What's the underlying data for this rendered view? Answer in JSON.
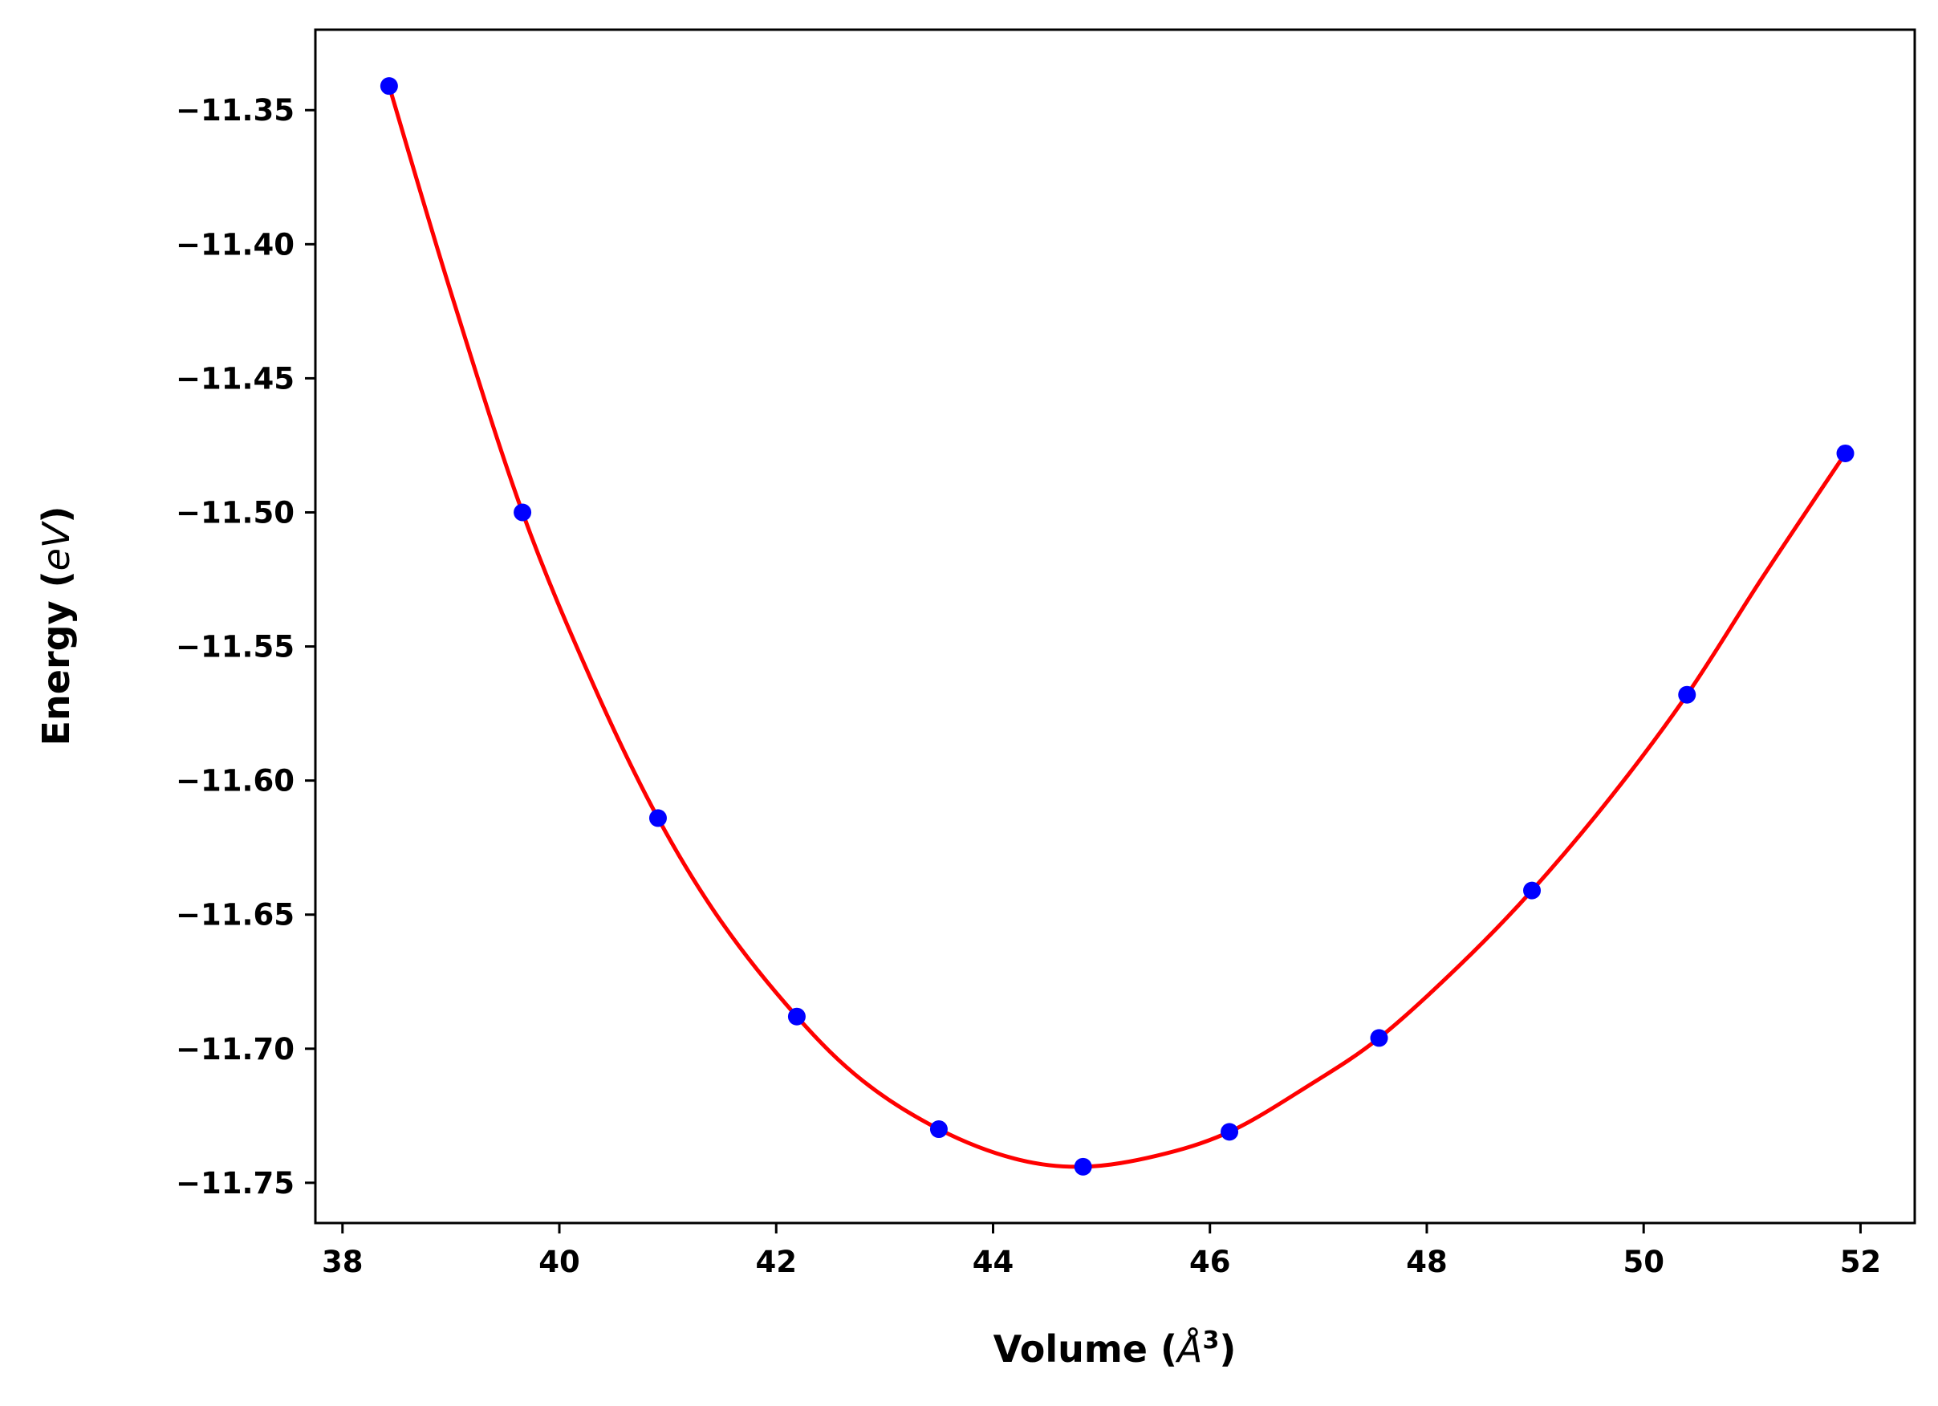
{
  "chart_data": {
    "type": "scatter",
    "title": "",
    "xlabel": {
      "prefix": "Volume (",
      "symbol": "Å",
      "sup": "3",
      "suffix": ")"
    },
    "ylabel": {
      "prefix": "Energy (",
      "symbol": "eV",
      "suffix": ")"
    },
    "xlim": [
      37.75,
      52.5
    ],
    "ylim": [
      -11.765,
      -11.32
    ],
    "x_ticks": [
      38,
      40,
      42,
      44,
      46,
      48,
      50,
      52
    ],
    "x_tick_labels": [
      "38",
      "40",
      "42",
      "44",
      "46",
      "48",
      "50",
      "52"
    ],
    "y_ticks": [
      -11.35,
      -11.4,
      -11.45,
      -11.5,
      -11.55,
      -11.6,
      -11.65,
      -11.7,
      -11.75
    ],
    "y_tick_labels": [
      "−11.35",
      "−11.40",
      "−11.45",
      "−11.50",
      "−11.55",
      "−11.60",
      "−11.65",
      "−11.70",
      "−11.75"
    ],
    "grid": false,
    "legend": "none",
    "series": [
      {
        "kind": "points",
        "color": "#0000ff",
        "x": [
          38.43,
          39.66,
          40.91,
          42.19,
          43.5,
          44.83,
          46.18,
          47.56,
          48.97,
          50.4,
          51.86
        ],
        "y": [
          -11.341,
          -11.5,
          -11.614,
          -11.688,
          -11.73,
          -11.744,
          -11.731,
          -11.696,
          -11.641,
          -11.568,
          -11.478
        ]
      },
      {
        "kind": "fit-curve",
        "color": "#ff0000",
        "x": [
          38.43,
          39.0,
          39.66,
          40.3,
          40.91,
          41.5,
          42.19,
          42.8,
          43.5,
          44.2,
          44.83,
          45.5,
          46.18,
          46.9,
          47.56,
          48.3,
          48.97,
          49.7,
          50.4,
          51.1,
          51.86
        ],
        "y": [
          -11.341,
          -11.418,
          -11.5,
          -11.563,
          -11.614,
          -11.653,
          -11.688,
          -11.712,
          -11.73,
          -11.741,
          -11.744,
          -11.74,
          -11.731,
          -11.714,
          -11.696,
          -11.669,
          -11.641,
          -11.606,
          -11.568,
          -11.524,
          -11.478
        ]
      }
    ]
  }
}
